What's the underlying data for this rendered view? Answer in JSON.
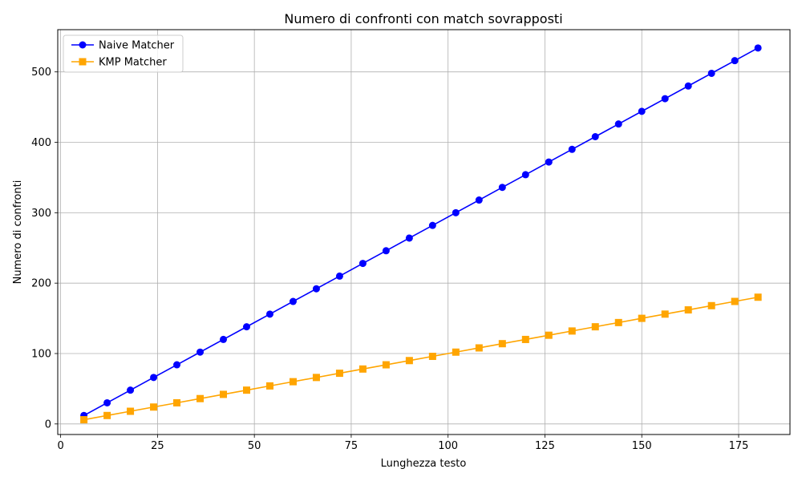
{
  "chart_data": {
    "type": "line",
    "title": "Numero di confronti con match sovrapposti",
    "xlabel": "Lunghezza testo",
    "ylabel": "Numero di confronti",
    "xlim": [
      -0.75,
      188.25
    ],
    "ylim": [
      -15,
      560
    ],
    "xticks": [
      0,
      25,
      50,
      75,
      100,
      125,
      150,
      175
    ],
    "yticks": [
      0,
      100,
      200,
      300,
      400,
      500
    ],
    "grid": true,
    "legend_position": "top-left",
    "x": [
      6,
      12,
      18,
      24,
      30,
      36,
      42,
      48,
      54,
      60,
      66,
      72,
      78,
      84,
      90,
      96,
      102,
      108,
      114,
      120,
      126,
      132,
      138,
      144,
      150,
      156,
      162,
      168,
      174,
      180
    ],
    "series": [
      {
        "name": "Naive Matcher",
        "color": "#0000ff",
        "marker": "circle",
        "values": [
          12,
          30,
          48,
          66,
          84,
          102,
          120,
          138,
          156,
          174,
          192,
          210,
          228,
          246,
          264,
          282,
          300,
          318,
          336,
          354,
          372,
          390,
          408,
          426,
          444,
          462,
          480,
          498,
          516,
          534
        ]
      },
      {
        "name": "KMP Matcher",
        "color": "#ffa500",
        "marker": "square",
        "values": [
          6,
          12,
          18,
          24,
          30,
          36,
          42,
          48,
          54,
          60,
          66,
          72,
          78,
          84,
          90,
          96,
          102,
          108,
          114,
          120,
          126,
          132,
          138,
          144,
          150,
          156,
          162,
          168,
          174,
          180
        ]
      }
    ]
  }
}
